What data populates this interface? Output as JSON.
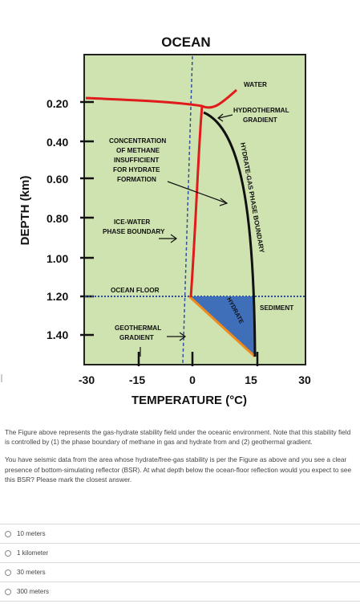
{
  "figure": {
    "title": "OCEAN",
    "y_axis_label": "DEPTH (km)",
    "x_axis_label": "TEMPERATURE (°C)",
    "depth_ticks": [
      "0.20",
      "0.40",
      "0.60",
      "0.80",
      "1.00",
      "1.20",
      "1.40"
    ],
    "temp_ticks": [
      "-30",
      "-15",
      "0",
      "15",
      "30"
    ],
    "labels": {
      "water": "WATER",
      "hydrothermal_1": "HYDROTHERMAL",
      "hydrothermal_2": "GRADIENT",
      "concentration_1": "CONCENTRATION",
      "concentration_2": "OF METHANE",
      "concentration_3": "INSUFFICIENT",
      "concentration_4": "FOR HYDRATE",
      "concentration_5": "FORMATION",
      "ice_water_1": "ICE-WATER",
      "ice_water_2": "PHASE BOUNDARY",
      "ocean_floor": "OCEAN FLOOR",
      "geothermal_1": "GEOTHERMAL",
      "geothermal_2": "GRADIENT",
      "sediment": "SEDIMENT",
      "hydrate": "HYDRATE",
      "boundary": "HYDRATE-GAS PHASE BOUNDARY"
    },
    "colors": {
      "plot_background": "#cfe3b0",
      "hydrate_zone": "#3f6fb8",
      "hydrothermal_curve": "#e01b1b",
      "geothermal_line": "#f08a1c",
      "ice_line": "#3050a0"
    }
  },
  "question": {
    "paragraph1": "The Figure above represents the gas-hydrate stability field under the oceanic environment. Note that this stability field is controlled by (1) the phase boundary of methane in gas and hydrate from and (2) geothermal gradient.",
    "paragraph2": "You have seismic data from the area whose hydrate/free-gas stability is per the Figure as above and you see a clear presence of bottom-simulating reflector (BSR). At what depth below the ocean-floor reflection would you expect to see this BSR? Please mark the closest answer."
  },
  "options": [
    "10 meters",
    "1 kilometer",
    "30 meters",
    "300 meters"
  ]
}
